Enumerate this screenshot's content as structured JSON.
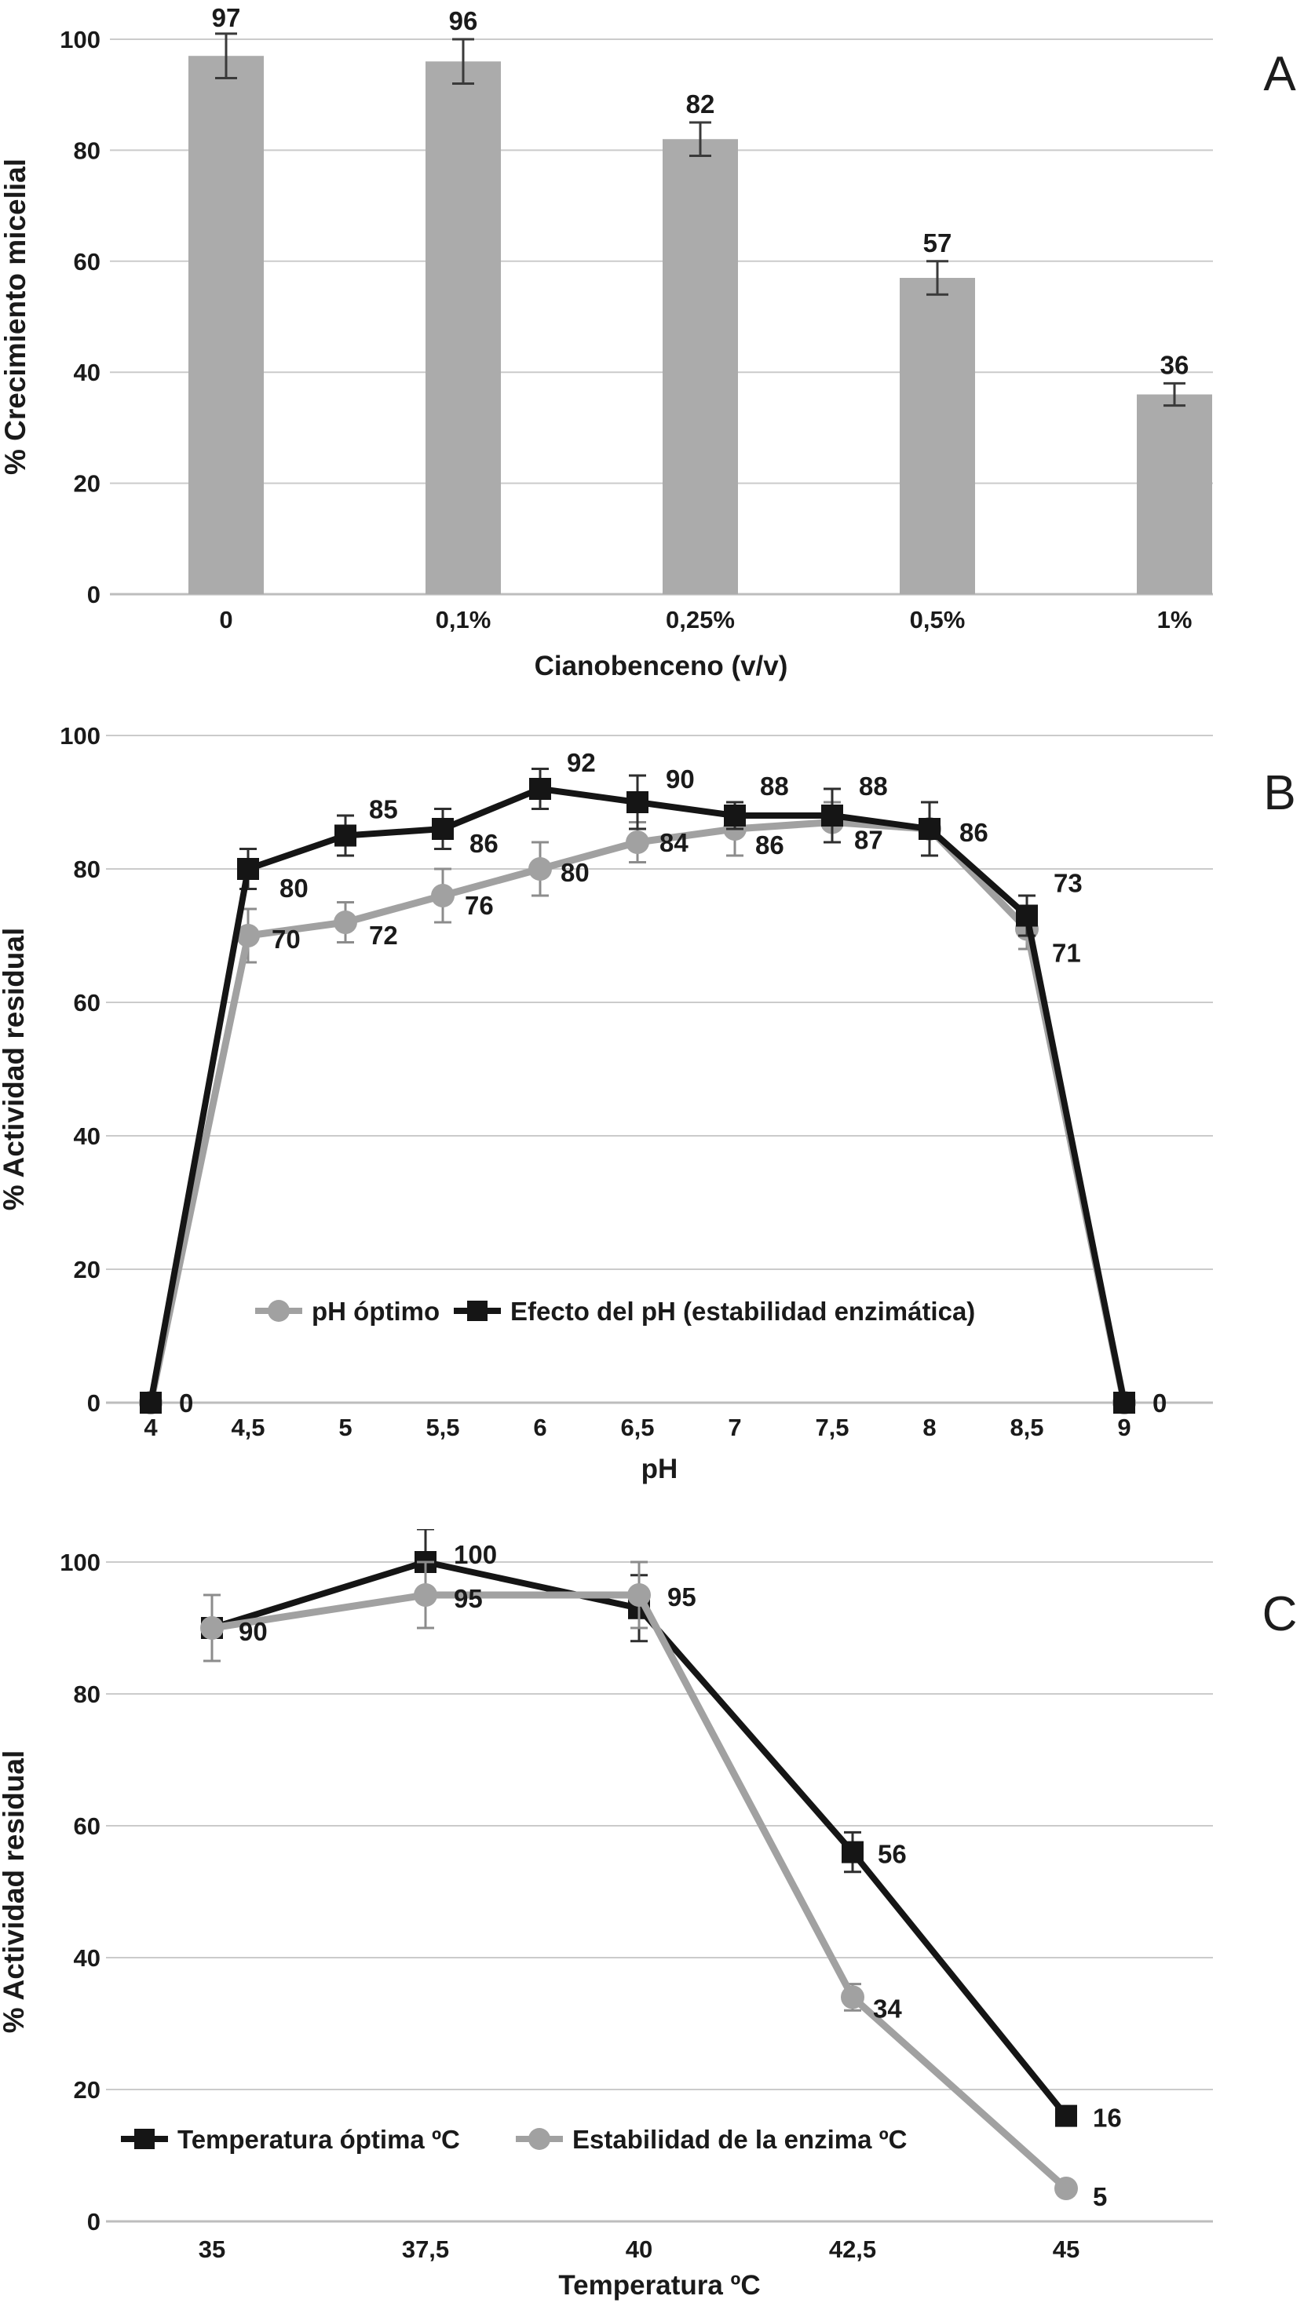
{
  "figure": {
    "background": "#ffffff",
    "text_color": "#1a1a1a",
    "grid_color": "#cbcbcb"
  },
  "chart_data": [
    {
      "panel_letter": "A",
      "type": "bar",
      "title": "",
      "xlabel": "Cianobenceno (v/v)",
      "ylabel": "% Crecimiento micelial",
      "categories": [
        "0",
        "0,1%",
        "0,25%",
        "0,5%",
        "1%"
      ],
      "values": [
        97,
        96,
        82,
        57,
        36
      ],
      "errors": [
        4,
        4,
        3,
        3,
        2
      ],
      "data_labels": [
        "97",
        "96",
        "82",
        "57",
        "36"
      ],
      "yticks": [
        0,
        20,
        40,
        60,
        80,
        100
      ],
      "ylim": [
        0,
        100
      ],
      "grid": true,
      "bar_color": "#ababab",
      "error_color": "#3a3a3a"
    },
    {
      "panel_letter": "B",
      "type": "line",
      "title": "",
      "xlabel": "pH",
      "ylabel": "% Actividad residual",
      "x_categories": [
        "4",
        "4,5",
        "5",
        "5,5",
        "6",
        "6,5",
        "7",
        "7,5",
        "8",
        "8,5",
        "9"
      ],
      "yticks": [
        0,
        20,
        40,
        60,
        80,
        100
      ],
      "ylim": [
        0,
        100
      ],
      "grid": true,
      "legend_position": "inside-bottom",
      "series": [
        {
          "name": "pH óptimo",
          "marker": "circle",
          "color": "#a1a1a1",
          "error_color": "#8c8c8c",
          "values": [
            0,
            70,
            72,
            76,
            80,
            84,
            86,
            87,
            86,
            71,
            0
          ],
          "errors": [
            0,
            4,
            3,
            4,
            4,
            3,
            4,
            3,
            0,
            3,
            0
          ],
          "labels": [
            "",
            "70",
            "72",
            "76",
            "80",
            "84",
            "86",
            "87",
            "",
            "71",
            ""
          ]
        },
        {
          "name": "Efecto del pH (estabilidad enzimática)",
          "marker": "square",
          "color": "#151515",
          "error_color": "#2e2e2e",
          "values": [
            0,
            80,
            85,
            86,
            92,
            90,
            88,
            88,
            86,
            73,
            0
          ],
          "errors": [
            0,
            3,
            3,
            3,
            3,
            4,
            2,
            4,
            4,
            3,
            0
          ],
          "labels": [
            "0",
            "80",
            "85",
            "86",
            "92",
            "90",
            "88",
            "88",
            "86",
            "73",
            "0"
          ]
        }
      ]
    },
    {
      "panel_letter": "C",
      "type": "line",
      "title": "",
      "xlabel": "Temperatura ºC",
      "ylabel": "% Actividad residual",
      "x_categories": [
        "35",
        "37,5",
        "40",
        "42,5",
        "45"
      ],
      "yticks": [
        0,
        20,
        40,
        60,
        80,
        100
      ],
      "ylim": [
        0,
        100
      ],
      "grid": true,
      "legend_position": "inside-bottom",
      "series": [
        {
          "name": "Temperatura óptima ºC",
          "marker": "square",
          "color": "#151515",
          "error_color": "#2e2e2e",
          "values": [
            90,
            100,
            93,
            56,
            16
          ],
          "errors": [
            5,
            5,
            5,
            3,
            0
          ],
          "labels": [
            "",
            "100",
            "",
            "56",
            "16"
          ]
        },
        {
          "name": "Estabilidad de la enzima ºC",
          "marker": "circle",
          "color": "#a1a1a1",
          "error_color": "#8c8c8c",
          "values": [
            90,
            95,
            95,
            34,
            5
          ],
          "errors": [
            5,
            5,
            5,
            2,
            0
          ],
          "labels": [
            "90",
            "95",
            "95",
            "34",
            "5"
          ]
        }
      ]
    }
  ]
}
